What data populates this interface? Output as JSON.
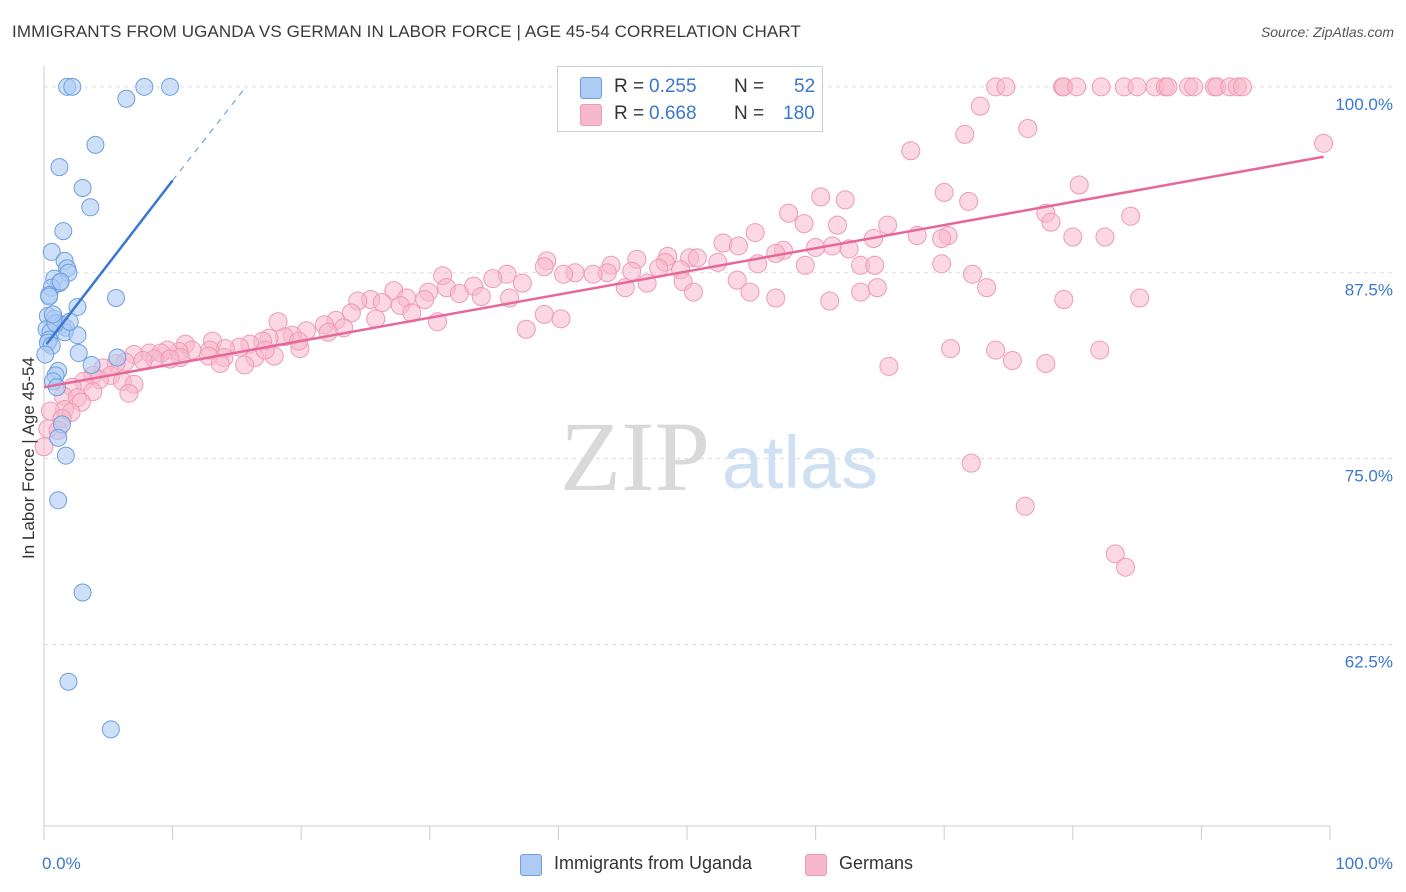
{
  "header": {
    "title": "IMMIGRANTS FROM UGANDA VS GERMAN IN LABOR FORCE | AGE 45-54 CORRELATION CHART",
    "source": "Source: ZipAtlas.com"
  },
  "watermark": {
    "zip": "ZIP",
    "atlas": "atlas"
  },
  "stats": {
    "uganda": {
      "r_label": "R =",
      "r_value": "0.255",
      "n_label": "N =",
      "n_value": "52"
    },
    "germans": {
      "r_label": "R =",
      "r_value": "0.668",
      "n_label": "N =",
      "n_value": "180"
    }
  },
  "legend": {
    "uganda": "Immigrants from Uganda",
    "germans": "Germans"
  },
  "colors": {
    "uganda_fill": "#aecbf3",
    "uganda_stroke": "#6e9ee0",
    "uganda_line": "#3a77d0",
    "germans_fill": "#f7b8cc",
    "germans_stroke": "#ee9ab5",
    "germans_line": "#e8679a",
    "tick_label": "#3a77d0",
    "grid": "#dddddd"
  },
  "chart_data": {
    "type": "scatter",
    "title": "IMMIGRANTS FROM UGANDA VS GERMAN IN LABOR FORCE | AGE 45-54 CORRELATION CHART",
    "xlabel": "",
    "ylabel": "In Labor Force | Age 45-54",
    "xlim": [
      0,
      100
    ],
    "ylim": [
      50.3,
      101.4
    ],
    "x_tick_labels": [
      "0.0%",
      "100.0%"
    ],
    "y_ticks": [
      {
        "value": 100.0,
        "label": "100.0%"
      },
      {
        "value": 87.5,
        "label": "87.5%"
      },
      {
        "value": 75.0,
        "label": "75.0%"
      },
      {
        "value": 62.5,
        "label": "62.5%"
      }
    ],
    "grid": true,
    "legend_position": "bottom",
    "series": [
      {
        "name": "Immigrants from Uganda",
        "color": "#aecbf3",
        "trend": {
          "x": [
            0.2,
            10.0
          ],
          "y": [
            82.7,
            93.7
          ],
          "dashed_to": [
            15.7,
            100.0
          ]
        },
        "points": [
          [
            1.8,
            100.0
          ],
          [
            2.2,
            100.0
          ],
          [
            7.8,
            100.0
          ],
          [
            9.8,
            100.0
          ],
          [
            6.4,
            99.2
          ],
          [
            4.0,
            96.1
          ],
          [
            1.2,
            94.6
          ],
          [
            3.0,
            93.2
          ],
          [
            3.6,
            91.9
          ],
          [
            1.5,
            90.3
          ],
          [
            0.6,
            88.9
          ],
          [
            1.6,
            88.3
          ],
          [
            1.8,
            87.8
          ],
          [
            1.9,
            87.5
          ],
          [
            0.8,
            87.1
          ],
          [
            1.2,
            86.8
          ],
          [
            0.6,
            86.5
          ],
          [
            0.4,
            86.0
          ],
          [
            5.6,
            85.8
          ],
          [
            2.6,
            85.2
          ],
          [
            0.3,
            84.6
          ],
          [
            0.8,
            84.4
          ],
          [
            1.1,
            84.1
          ],
          [
            1.4,
            84.0
          ],
          [
            1.7,
            83.8
          ],
          [
            0.2,
            83.7
          ],
          [
            0.5,
            83.5
          ],
          [
            1.6,
            83.5
          ],
          [
            2.6,
            83.3
          ],
          [
            0.4,
            83.0
          ],
          [
            0.3,
            82.8
          ],
          [
            0.6,
            82.6
          ],
          [
            2.7,
            82.1
          ],
          [
            0.1,
            82.0
          ],
          [
            5.7,
            81.8
          ],
          [
            3.7,
            81.3
          ],
          [
            1.1,
            80.9
          ],
          [
            0.9,
            80.6
          ],
          [
            0.7,
            80.2
          ],
          [
            1.0,
            79.8
          ],
          [
            1.4,
            77.3
          ],
          [
            1.1,
            76.4
          ],
          [
            1.7,
            75.2
          ],
          [
            1.1,
            72.2
          ],
          [
            3.0,
            66.0
          ],
          [
            1.9,
            60.0
          ],
          [
            5.2,
            56.8
          ],
          [
            0.9,
            84.1
          ],
          [
            0.7,
            84.7
          ],
          [
            1.3,
            86.9
          ],
          [
            2.0,
            84.2
          ],
          [
            0.4,
            85.9
          ]
        ]
      },
      {
        "name": "Germans",
        "color": "#f7b8cc",
        "trend": {
          "x": [
            0.0,
            99.5
          ],
          "y": [
            79.8,
            95.3
          ]
        },
        "points": [
          [
            74.0,
            100.0
          ],
          [
            74.8,
            100.0
          ],
          [
            79.2,
            100.0
          ],
          [
            79.3,
            100.0
          ],
          [
            80.3,
            100.0
          ],
          [
            82.2,
            100.0
          ],
          [
            84.0,
            100.0
          ],
          [
            85.0,
            100.0
          ],
          [
            86.4,
            100.0
          ],
          [
            87.2,
            100.0
          ],
          [
            87.4,
            100.0
          ],
          [
            89.0,
            100.0
          ],
          [
            89.4,
            100.0
          ],
          [
            91.0,
            100.0
          ],
          [
            91.2,
            100.0
          ],
          [
            92.2,
            100.0
          ],
          [
            92.8,
            100.0
          ],
          [
            93.2,
            100.0
          ],
          [
            72.8,
            98.7
          ],
          [
            71.6,
            96.8
          ],
          [
            76.5,
            97.2
          ],
          [
            67.4,
            95.7
          ],
          [
            99.5,
            96.2
          ],
          [
            80.5,
            93.4
          ],
          [
            60.4,
            92.6
          ],
          [
            70.0,
            92.9
          ],
          [
            71.9,
            92.3
          ],
          [
            62.3,
            92.4
          ],
          [
            57.9,
            91.5
          ],
          [
            77.9,
            91.5
          ],
          [
            78.3,
            90.9
          ],
          [
            59.1,
            90.8
          ],
          [
            65.6,
            90.7
          ],
          [
            61.7,
            90.7
          ],
          [
            55.3,
            90.2
          ],
          [
            67.9,
            90.0
          ],
          [
            70.3,
            90.0
          ],
          [
            82.5,
            89.9
          ],
          [
            64.5,
            89.8
          ],
          [
            80.0,
            89.9
          ],
          [
            69.8,
            89.8
          ],
          [
            52.8,
            89.5
          ],
          [
            54.0,
            89.3
          ],
          [
            61.3,
            89.3
          ],
          [
            60.0,
            89.2
          ],
          [
            62.6,
            89.1
          ],
          [
            57.5,
            89.0
          ],
          [
            56.9,
            88.8
          ],
          [
            50.2,
            88.5
          ],
          [
            50.8,
            88.5
          ],
          [
            52.4,
            88.2
          ],
          [
            55.5,
            88.1
          ],
          [
            59.2,
            88.0
          ],
          [
            63.5,
            88.0
          ],
          [
            64.6,
            88.0
          ],
          [
            69.8,
            88.1
          ],
          [
            46.1,
            88.4
          ],
          [
            48.5,
            88.6
          ],
          [
            48.3,
            88.2
          ],
          [
            39.1,
            88.3
          ],
          [
            38.9,
            87.9
          ],
          [
            44.1,
            88.0
          ],
          [
            47.8,
            87.8
          ],
          [
            49.5,
            87.7
          ],
          [
            45.7,
            87.6
          ],
          [
            43.8,
            87.5
          ],
          [
            42.7,
            87.4
          ],
          [
            41.3,
            87.5
          ],
          [
            40.4,
            87.4
          ],
          [
            36.0,
            87.4
          ],
          [
            34.9,
            87.1
          ],
          [
            31.0,
            87.3
          ],
          [
            46.9,
            86.8
          ],
          [
            49.7,
            86.9
          ],
          [
            53.9,
            87.0
          ],
          [
            37.2,
            86.8
          ],
          [
            33.4,
            86.6
          ],
          [
            31.3,
            86.5
          ],
          [
            27.2,
            86.3
          ],
          [
            29.9,
            86.2
          ],
          [
            32.3,
            86.1
          ],
          [
            34.0,
            85.9
          ],
          [
            36.2,
            85.8
          ],
          [
            28.2,
            85.8
          ],
          [
            29.6,
            85.7
          ],
          [
            25.4,
            85.7
          ],
          [
            24.4,
            85.6
          ],
          [
            26.3,
            85.5
          ],
          [
            27.7,
            85.3
          ],
          [
            45.2,
            86.5
          ],
          [
            50.5,
            86.2
          ],
          [
            54.9,
            86.2
          ],
          [
            56.9,
            85.8
          ],
          [
            63.5,
            86.2
          ],
          [
            64.8,
            86.5
          ],
          [
            72.2,
            87.4
          ],
          [
            73.3,
            86.5
          ],
          [
            79.3,
            85.7
          ],
          [
            85.2,
            85.8
          ],
          [
            61.1,
            85.6
          ],
          [
            28.6,
            84.8
          ],
          [
            23.9,
            84.8
          ],
          [
            25.8,
            84.4
          ],
          [
            22.7,
            84.3
          ],
          [
            21.8,
            84.0
          ],
          [
            23.3,
            83.8
          ],
          [
            20.4,
            83.6
          ],
          [
            19.3,
            83.3
          ],
          [
            18.7,
            83.2
          ],
          [
            17.5,
            83.1
          ],
          [
            22.1,
            83.5
          ],
          [
            17.0,
            82.9
          ],
          [
            13.1,
            82.9
          ],
          [
            11.0,
            82.7
          ],
          [
            16.0,
            82.7
          ],
          [
            15.2,
            82.5
          ],
          [
            14.1,
            82.4
          ],
          [
            12.9,
            82.3
          ],
          [
            11.5,
            82.3
          ],
          [
            10.5,
            82.2
          ],
          [
            9.6,
            82.3
          ],
          [
            8.2,
            82.1
          ],
          [
            9.1,
            82.1
          ],
          [
            7.0,
            82.0
          ],
          [
            14.0,
            81.8
          ],
          [
            12.8,
            81.9
          ],
          [
            16.4,
            81.8
          ],
          [
            10.6,
            81.8
          ],
          [
            17.9,
            81.9
          ],
          [
            8.6,
            81.7
          ],
          [
            19.9,
            82.4
          ],
          [
            6.3,
            81.5
          ],
          [
            7.7,
            81.6
          ],
          [
            5.6,
            81.4
          ],
          [
            4.6,
            81.1
          ],
          [
            9.8,
            81.7
          ],
          [
            13.7,
            81.4
          ],
          [
            15.6,
            81.3
          ],
          [
            3.8,
            80.6
          ],
          [
            5.2,
            80.6
          ],
          [
            4.3,
            80.3
          ],
          [
            6.1,
            80.2
          ],
          [
            3.1,
            80.2
          ],
          [
            7.0,
            80.0
          ],
          [
            2.2,
            79.8
          ],
          [
            3.8,
            79.5
          ],
          [
            6.6,
            79.4
          ],
          [
            1.5,
            79.2
          ],
          [
            2.6,
            79.1
          ],
          [
            2.9,
            78.8
          ],
          [
            1.6,
            78.3
          ],
          [
            0.5,
            78.2
          ],
          [
            2.1,
            78.1
          ],
          [
            1.4,
            77.7
          ],
          [
            0.3,
            77.0
          ],
          [
            1.1,
            76.9
          ],
          [
            0.0,
            75.8
          ],
          [
            17.2,
            82.3
          ],
          [
            37.5,
            83.7
          ],
          [
            19.8,
            82.9
          ],
          [
            30.6,
            84.2
          ],
          [
            18.2,
            84.2
          ],
          [
            38.9,
            84.7
          ],
          [
            40.2,
            84.4
          ],
          [
            70.5,
            82.4
          ],
          [
            74.0,
            82.3
          ],
          [
            77.9,
            81.4
          ],
          [
            82.1,
            82.3
          ],
          [
            75.3,
            81.6
          ],
          [
            65.7,
            81.2
          ],
          [
            72.1,
            74.7
          ],
          [
            76.3,
            71.8
          ],
          [
            83.3,
            68.6
          ],
          [
            84.1,
            67.7
          ],
          [
            84.5,
            91.3
          ]
        ]
      }
    ]
  }
}
